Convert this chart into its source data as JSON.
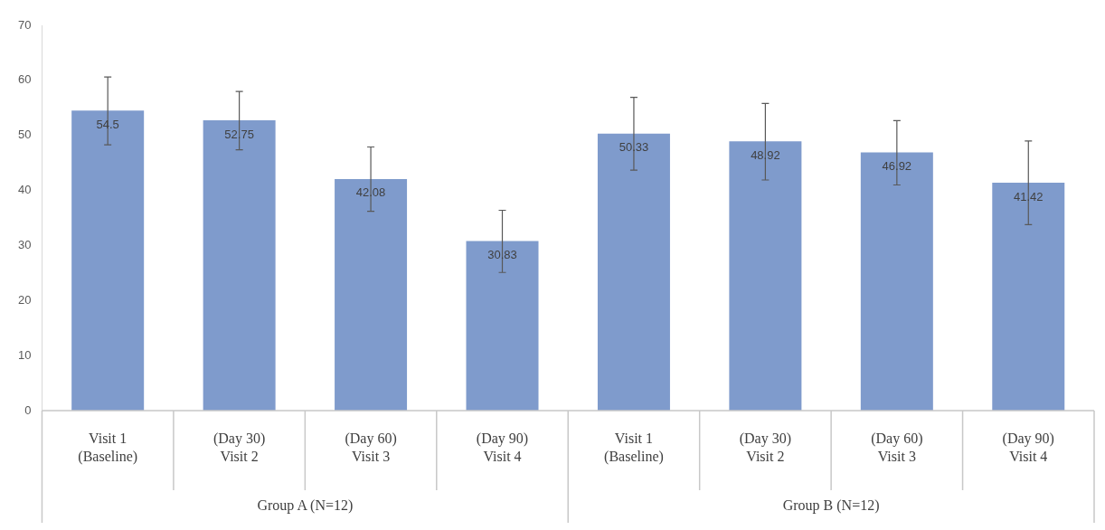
{
  "chart_data": {
    "type": "bar",
    "categories": [
      "Visit 1\n(Baseline)",
      "(Day 30)\nVisit 2",
      "(Day 60)\nVisit 3",
      "(Day 90)\nVisit 4",
      "Visit 1\n(Baseline)",
      "(Day 30)\nVisit 2",
      "(Day 60)\nVisit 3",
      "(Day 90)\nVisit 4"
    ],
    "values": [
      54.5,
      52.75,
      42.08,
      30.83,
      50.33,
      48.92,
      46.92,
      41.42
    ],
    "errors": [
      [
        48.3,
        60.6
      ],
      [
        47.4,
        58.0
      ],
      [
        36.2,
        47.9
      ],
      [
        25.1,
        36.4
      ],
      [
        43.7,
        56.9
      ],
      [
        41.9,
        55.8
      ],
      [
        41.0,
        52.7
      ],
      [
        33.8,
        49.0
      ]
    ],
    "color": "#7f9bcc",
    "data_labels": true,
    "annotations": [
      "Group A (N=12)",
      "Group B (N=12)"
    ],
    "ylim": [
      0,
      70
    ],
    "yticks": [
      0,
      10,
      20,
      30,
      40,
      50,
      60,
      70
    ],
    "grid": false,
    "legend": false
  }
}
